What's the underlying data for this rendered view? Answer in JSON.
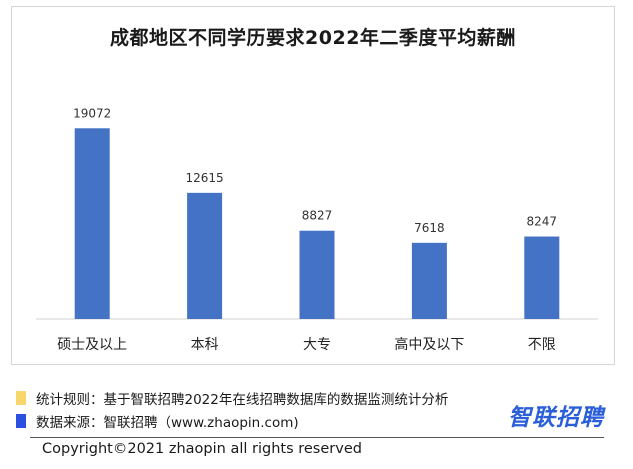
{
  "chart_data": {
    "type": "bar",
    "title": "成都地区不同学历要求2022年二季度平均薪酬",
    "categories": [
      "硕士及以上",
      "本科",
      "大专",
      "高中及以下",
      "不限"
    ],
    "values": [
      19072,
      12615,
      8827,
      7618,
      8247
    ],
    "xlabel": "",
    "ylabel": "",
    "ylim": [
      0,
      24000
    ],
    "grid": false,
    "legend": "none",
    "colors": {
      "bar": "#4472c4"
    }
  },
  "footer": {
    "rule_label": "统计规则：基于智联招聘2022年在线招聘数据库的数据监测统计分析",
    "source_label": "数据来源：智联招聘（www.zhaopin.com)",
    "rule_color": "#f7d66b",
    "source_color": "#2b4fe0",
    "logo_text": "智联招聘",
    "copyright": "Copyright©2021 zhaopin all rights reserved"
  }
}
